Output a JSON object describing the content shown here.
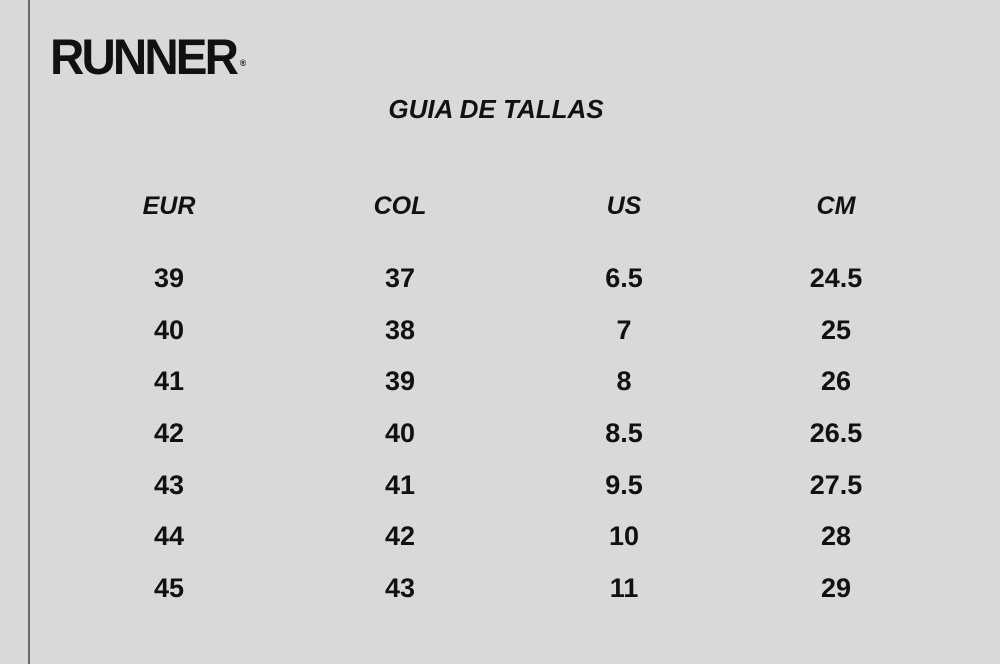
{
  "brand": {
    "logo_text": "RUNNER",
    "registered": "®"
  },
  "title": "GUIA DE TALLAS",
  "table": {
    "columns": [
      {
        "header": "EUR",
        "values": [
          "39",
          "40",
          "41",
          "42",
          "43",
          "44",
          "45"
        ]
      },
      {
        "header": "COL",
        "values": [
          "37",
          "38",
          "39",
          "40",
          "41",
          "42",
          "43"
        ]
      },
      {
        "header": "US",
        "values": [
          "6.5",
          "7",
          "8",
          "8.5",
          "9.5",
          "10",
          "11"
        ]
      },
      {
        "header": "CM",
        "values": [
          "24.5",
          "25",
          "26",
          "26.5",
          "27.5",
          "28",
          "29"
        ]
      }
    ]
  }
}
